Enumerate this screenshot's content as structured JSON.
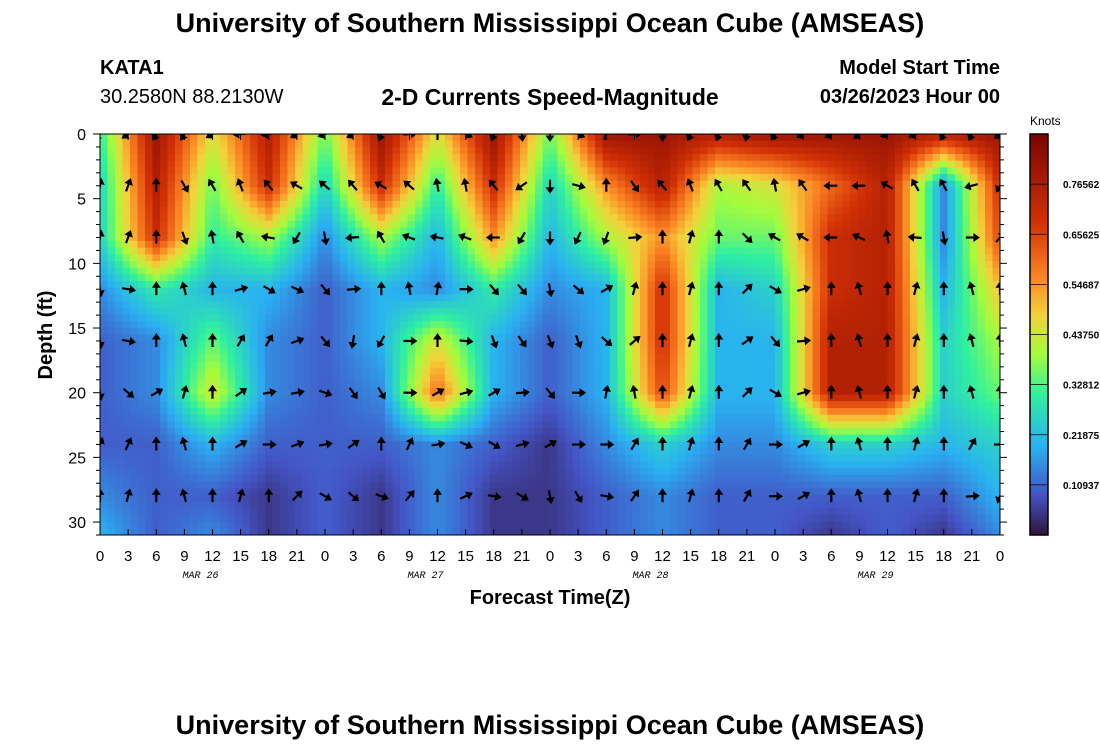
{
  "header": {
    "title": "University of Southern Mississippi Ocean Cube (AMSEAS)",
    "station": "KATA1",
    "coords": "30.2580N  88.2130W",
    "subtitle": "2-D Currents Speed-Magnitude",
    "model_start_label": "Model Start Time",
    "model_start_value": "03/26/2023 Hour 00"
  },
  "footer": {
    "title": "University of Southern Mississippi Ocean Cube (AMSEAS)"
  },
  "chart_data": {
    "type": "heatmap",
    "title": "2-D Currents Speed-Magnitude",
    "xlabel": "Forecast Time(Z)",
    "ylabel": "Depth (ft)",
    "xlim": [
      0,
      96
    ],
    "ylim": [
      0,
      31
    ],
    "xtick_labels": [
      "0",
      "3",
      "6",
      "9",
      "12",
      "15",
      "18",
      "21",
      "0",
      "3",
      "6",
      "9",
      "12",
      "15",
      "18",
      "21",
      "0",
      "3",
      "6",
      "9",
      "12",
      "15",
      "18",
      "21",
      "0",
      "3",
      "6",
      "9",
      "12",
      "15",
      "18",
      "21",
      "0"
    ],
    "ytick_labels": [
      "0",
      "5",
      "10",
      "15",
      "20",
      "25",
      "30"
    ],
    "day_labels": [
      "MAR 26",
      "MAR 27",
      "MAR 28",
      "MAR 29"
    ],
    "colorbar": {
      "label": "Knots",
      "min": 0,
      "max": 0.875,
      "tick_labels": [
        "0.10937",
        "0.21875",
        "0.32812",
        "0.43750",
        "0.54687",
        "0.65625",
        "0.76562"
      ]
    },
    "speed_grid": {
      "depths_ft": [
        0,
        4,
        8,
        12,
        16,
        20,
        24,
        28,
        31
      ],
      "hours": [
        0,
        6,
        12,
        18,
        24,
        30,
        36,
        42,
        48,
        54,
        60,
        66,
        72,
        78,
        84,
        90,
        96
      ],
      "values": [
        [
          0.3,
          0.8,
          0.45,
          0.75,
          0.35,
          0.8,
          0.45,
          0.8,
          0.35,
          0.8,
          0.8,
          0.75,
          0.8,
          0.8,
          0.8,
          0.75,
          0.8
        ],
        [
          0.25,
          0.75,
          0.35,
          0.7,
          0.25,
          0.7,
          0.3,
          0.7,
          0.25,
          0.55,
          0.75,
          0.4,
          0.45,
          0.6,
          0.75,
          0.15,
          0.7
        ],
        [
          0.25,
          0.7,
          0.3,
          0.4,
          0.15,
          0.4,
          0.2,
          0.55,
          0.2,
          0.4,
          0.55,
          0.35,
          0.35,
          0.7,
          0.75,
          0.15,
          0.65
        ],
        [
          0.15,
          0.3,
          0.2,
          0.2,
          0.1,
          0.2,
          0.15,
          0.3,
          0.15,
          0.2,
          0.7,
          0.2,
          0.25,
          0.7,
          0.75,
          0.2,
          0.5
        ],
        [
          0.1,
          0.15,
          0.35,
          0.15,
          0.1,
          0.2,
          0.45,
          0.2,
          0.1,
          0.2,
          0.7,
          0.2,
          0.2,
          0.75,
          0.75,
          0.25,
          0.4
        ],
        [
          0.1,
          0.15,
          0.45,
          0.15,
          0.1,
          0.15,
          0.6,
          0.2,
          0.1,
          0.2,
          0.65,
          0.2,
          0.2,
          0.75,
          0.75,
          0.25,
          0.35
        ],
        [
          0.1,
          0.1,
          0.2,
          0.1,
          0.1,
          0.1,
          0.15,
          0.1,
          0.05,
          0.15,
          0.25,
          0.15,
          0.15,
          0.25,
          0.25,
          0.2,
          0.25
        ],
        [
          0.15,
          0.1,
          0.1,
          0.05,
          0.1,
          0.05,
          0.15,
          0.05,
          0.05,
          0.1,
          0.15,
          0.1,
          0.1,
          0.1,
          0.1,
          0.1,
          0.2
        ],
        [
          0.2,
          0.1,
          0.15,
          0.05,
          0.1,
          0.05,
          0.15,
          0.05,
          0.05,
          0.1,
          0.15,
          0.1,
          0.1,
          0.05,
          0.1,
          0.05,
          0.15
        ]
      ]
    },
    "vector_depths_ft": [
      0,
      4,
      8,
      12,
      16,
      20,
      24,
      28
    ],
    "vector_direction_deg": [
      [
        230,
        210,
        240,
        260,
        250,
        200,
        0,
        200,
        180,
        20,
        180,
        200,
        210,
        240,
        250,
        210,
        230
      ],
      [
        10,
        0,
        330,
        320,
        310,
        300,
        350,
        320,
        180,
        0,
        320,
        330,
        350,
        270,
        300,
        330,
        210
      ],
      [
        10,
        0,
        350,
        280,
        170,
        330,
        280,
        270,
        180,
        200,
        0,
        0,
        300,
        270,
        350,
        170,
        40
      ],
      [
        170,
        0,
        0,
        120,
        140,
        0,
        10,
        140,
        170,
        60,
        0,
        0,
        120,
        0,
        0,
        0,
        0
      ],
      [
        170,
        0,
        0,
        30,
        140,
        210,
        0,
        160,
        160,
        130,
        0,
        0,
        140,
        0,
        0,
        0,
        0
      ],
      [
        170,
        60,
        0,
        80,
        110,
        150,
        60,
        60,
        140,
        10,
        0,
        0,
        120,
        0,
        0,
        0,
        0
      ],
      [
        20,
        0,
        0,
        90,
        80,
        0,
        80,
        120,
        60,
        90,
        0,
        0,
        90,
        0,
        0,
        0,
        90
      ],
      [
        0,
        0,
        0,
        0,
        120,
        110,
        0,
        100,
        170,
        100,
        0,
        0,
        90,
        0,
        0,
        0,
        200
      ]
    ]
  }
}
